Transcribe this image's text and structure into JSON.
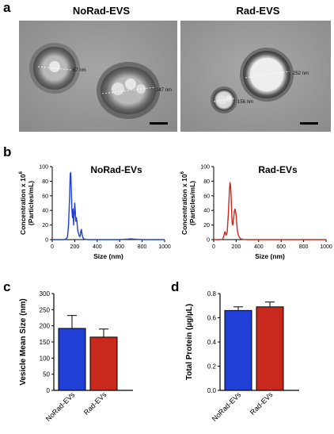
{
  "panels": {
    "a": {
      "letter": "a",
      "images": [
        {
          "title": "NoRad-EVS",
          "measurements": [
            "67 nm",
            "247 nm"
          ]
        },
        {
          "title": "Rad-EVS",
          "measurements": [
            "252 nm",
            "156 nm"
          ]
        }
      ]
    },
    "b": {
      "letter": "b"
    },
    "c": {
      "letter": "c"
    },
    "d": {
      "letter": "d"
    }
  },
  "chart_data": [
    {
      "id": "nta-norad",
      "type": "line",
      "title": "NoRad-EVs",
      "xlabel": "Size (nm)",
      "ylabel_line1": "Concentration x 10",
      "ylabel_exponent": "6",
      "ylabel_line2": "(Particles/mL)",
      "xlim": [
        0,
        1000
      ],
      "ylim": [
        0,
        100
      ],
      "xticks": [
        0,
        200,
        400,
        600,
        800,
        1000
      ],
      "yticks": [
        0,
        20,
        40,
        60,
        80,
        100
      ],
      "color": "#1F3FD6",
      "x": [
        0,
        100,
        120,
        135,
        145,
        155,
        160,
        165,
        170,
        175,
        180,
        185,
        190,
        195,
        200,
        205,
        210,
        215,
        220,
        225,
        230,
        235,
        240,
        245,
        250,
        255,
        260,
        265,
        270,
        275,
        280,
        290,
        300,
        320,
        400,
        600,
        680,
        700,
        720,
        800,
        1000
      ],
      "y": [
        0,
        0,
        0.5,
        3,
        20,
        60,
        90,
        92,
        70,
        42,
        30,
        42,
        20,
        33,
        50,
        40,
        25,
        30,
        25,
        15,
        10,
        8,
        5,
        4,
        6,
        12,
        14,
        8,
        4,
        2,
        1,
        0.5,
        0.3,
        0,
        0,
        0,
        0.8,
        1,
        0.8,
        0,
        0
      ]
    },
    {
      "id": "nta-rad",
      "type": "line",
      "title": "Rad-EVs",
      "xlabel": "Size (nm)",
      "ylabel_line1": "Concentration x 10",
      "ylabel_exponent": "6",
      "ylabel_line2": "(Particles/mL)",
      "xlim": [
        0,
        1000
      ],
      "ylim": [
        0,
        100
      ],
      "xticks": [
        0,
        200,
        400,
        600,
        800,
        1000
      ],
      "yticks": [
        0,
        20,
        40,
        60,
        80,
        100
      ],
      "color": "#C9281D",
      "x": [
        0,
        50,
        80,
        90,
        100,
        110,
        120,
        130,
        140,
        145,
        150,
        155,
        160,
        165,
        170,
        175,
        180,
        185,
        190,
        195,
        200,
        205,
        210,
        215,
        220,
        225,
        230,
        235,
        240,
        250,
        270,
        300,
        1000
      ],
      "y": [
        0,
        0,
        0.5,
        5,
        11,
        6,
        10,
        35,
        68,
        78,
        74,
        60,
        38,
        22,
        20,
        25,
        33,
        40,
        42,
        38,
        33,
        22,
        14,
        9,
        6,
        4,
        3,
        2,
        1,
        0.5,
        0.2,
        0,
        0
      ]
    },
    {
      "id": "vesicle-size",
      "type": "bar",
      "ylabel": "Vesicle Mean Size (nm)",
      "categories": [
        "NoRad-EVs",
        "Rad-EVs"
      ],
      "values": [
        192,
        165
      ],
      "errors": [
        40,
        25
      ],
      "colors": [
        "#1F3FD6",
        "#C9281D"
      ],
      "ylim": [
        0,
        300
      ],
      "yticks": [
        0,
        50,
        100,
        150,
        200,
        250,
        300
      ]
    },
    {
      "id": "total-protein",
      "type": "bar",
      "ylabel": "Total Protein (µg/µL)",
      "categories": [
        "NoRad-EVs",
        "Rad-EVs"
      ],
      "values": [
        0.66,
        0.69
      ],
      "errors": [
        0.03,
        0.04
      ],
      "colors": [
        "#1F3FD6",
        "#C9281D"
      ],
      "ylim": [
        0,
        0.8
      ],
      "yticks": [
        0.0,
        0.2,
        0.4,
        0.6,
        0.8
      ],
      "ytick_labels": [
        "0.0",
        "0.2",
        "0.4",
        "0.6",
        "0.8"
      ]
    }
  ]
}
